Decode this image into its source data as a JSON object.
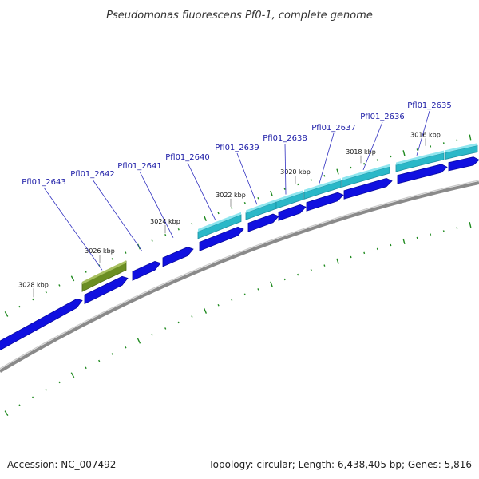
{
  "title": "Pseudomonas fluorescens Pf0-1, complete genome",
  "accession": "Accession: NC_007492",
  "summary": "Topology: circular; Length: 6,438,405 bp; Genes: 5,816",
  "colors": {
    "backbone": "#8a8a8a",
    "forward_gene": "#2ab8c8",
    "reverse_gene": "#1010e0",
    "highlight_gene": "#6b8e23",
    "tick": "#1f8a1f",
    "label_line": "#3030c0"
  },
  "kbp_markers": [
    "3028 kbp",
    "3026 kbp",
    "3024 kbp",
    "3022 kbp",
    "3020 kbp",
    "3018 kbp",
    "3016 kbp"
  ],
  "genes": [
    "Pfl01_2643",
    "Pfl01_2642",
    "Pfl01_2641",
    "Pfl01_2640",
    "Pfl01_2639",
    "Pfl01_2638",
    "Pfl01_2637",
    "Pfl01_2636",
    "Pfl01_2635"
  ]
}
